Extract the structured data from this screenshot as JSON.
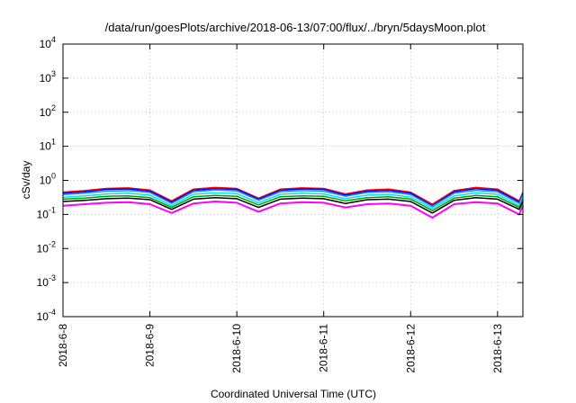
{
  "chart_data": {
    "type": "line",
    "title": "/data/run/goesPlots/archive/2018-06-13/07:00/flux/../bryn/5daysMoon.plot",
    "xlabel": "Coordinated Universal Time (UTC)",
    "ylabel": "cSv/day",
    "y_scale": "log",
    "ylim": [
      0.0001,
      10000
    ],
    "y_ticks": [
      {
        "value": 0.0001,
        "base": "10",
        "exp": "-4"
      },
      {
        "value": 0.001,
        "base": "10",
        "exp": "-3"
      },
      {
        "value": 0.01,
        "base": "10",
        "exp": "-2"
      },
      {
        "value": 0.1,
        "base": "10",
        "exp": "-1"
      },
      {
        "value": 1,
        "base": "10",
        "exp": "0"
      },
      {
        "value": 10,
        "base": "10",
        "exp": "1"
      },
      {
        "value": 100,
        "base": "10",
        "exp": "2"
      },
      {
        "value": 1000,
        "base": "10",
        "exp": "3"
      },
      {
        "value": 10000,
        "base": "10",
        "exp": "4"
      }
    ],
    "xlim": [
      "2018-06-08 00:00",
      "2018-06-13 07:00"
    ],
    "x_ticks": [
      "2018-6-8",
      "2018-6-9",
      "2018-6-10",
      "2018-6-11",
      "2018-6-12",
      "2018-6-13"
    ],
    "grid": true,
    "x": [
      "2018-06-08 00:00",
      "2018-06-08 06:00",
      "2018-06-08 12:00",
      "2018-06-08 18:00",
      "2018-06-09 00:00",
      "2018-06-09 06:00",
      "2018-06-09 12:00",
      "2018-06-09 18:00",
      "2018-06-10 00:00",
      "2018-06-10 06:00",
      "2018-06-10 12:00",
      "2018-06-10 18:00",
      "2018-06-11 00:00",
      "2018-06-11 06:00",
      "2018-06-11 12:00",
      "2018-06-11 18:00",
      "2018-06-12 00:00",
      "2018-06-12 06:00",
      "2018-06-12 12:00",
      "2018-06-12 18:00",
      "2018-06-13 00:00",
      "2018-06-13 06:00",
      "2018-06-13 07:00"
    ],
    "series": [
      {
        "color": "#ff0000",
        "values": [
          0.45,
          0.5,
          0.58,
          0.6,
          0.52,
          0.25,
          0.55,
          0.62,
          0.58,
          0.3,
          0.55,
          0.6,
          0.58,
          0.4,
          0.52,
          0.55,
          0.45,
          0.2,
          0.5,
          0.62,
          0.55,
          0.25,
          0.45
        ]
      },
      {
        "color": "#0000ff",
        "values": [
          0.42,
          0.46,
          0.54,
          0.56,
          0.48,
          0.23,
          0.51,
          0.57,
          0.54,
          0.28,
          0.51,
          0.56,
          0.54,
          0.37,
          0.48,
          0.51,
          0.42,
          0.18,
          0.46,
          0.57,
          0.51,
          0.23,
          0.42
        ]
      },
      {
        "color": "#1e90ff",
        "values": [
          0.38,
          0.42,
          0.48,
          0.5,
          0.44,
          0.21,
          0.46,
          0.52,
          0.49,
          0.26,
          0.46,
          0.5,
          0.48,
          0.34,
          0.44,
          0.46,
          0.38,
          0.17,
          0.42,
          0.51,
          0.46,
          0.21,
          0.38
        ]
      },
      {
        "color": "#00e5e5",
        "values": [
          0.32,
          0.35,
          0.4,
          0.42,
          0.37,
          0.18,
          0.39,
          0.43,
          0.41,
          0.22,
          0.39,
          0.42,
          0.4,
          0.29,
          0.37,
          0.39,
          0.32,
          0.15,
          0.35,
          0.43,
          0.39,
          0.18,
          0.32
        ]
      },
      {
        "color": "#00a000",
        "values": [
          0.28,
          0.3,
          0.34,
          0.35,
          0.31,
          0.16,
          0.33,
          0.36,
          0.34,
          0.19,
          0.33,
          0.35,
          0.34,
          0.25,
          0.31,
          0.33,
          0.28,
          0.13,
          0.3,
          0.36,
          0.33,
          0.16,
          0.28
        ]
      },
      {
        "color": "#000000",
        "values": [
          0.24,
          0.26,
          0.29,
          0.3,
          0.27,
          0.14,
          0.28,
          0.31,
          0.29,
          0.16,
          0.28,
          0.3,
          0.29,
          0.21,
          0.27,
          0.28,
          0.24,
          0.11,
          0.26,
          0.31,
          0.28,
          0.14,
          0.24
        ]
      },
      {
        "color": "#ff00ff",
        "values": [
          0.18,
          0.2,
          0.22,
          0.23,
          0.2,
          0.11,
          0.21,
          0.24,
          0.22,
          0.12,
          0.21,
          0.23,
          0.22,
          0.16,
          0.2,
          0.21,
          0.18,
          0.08,
          0.2,
          0.23,
          0.21,
          0.1,
          0.18
        ]
      }
    ]
  }
}
